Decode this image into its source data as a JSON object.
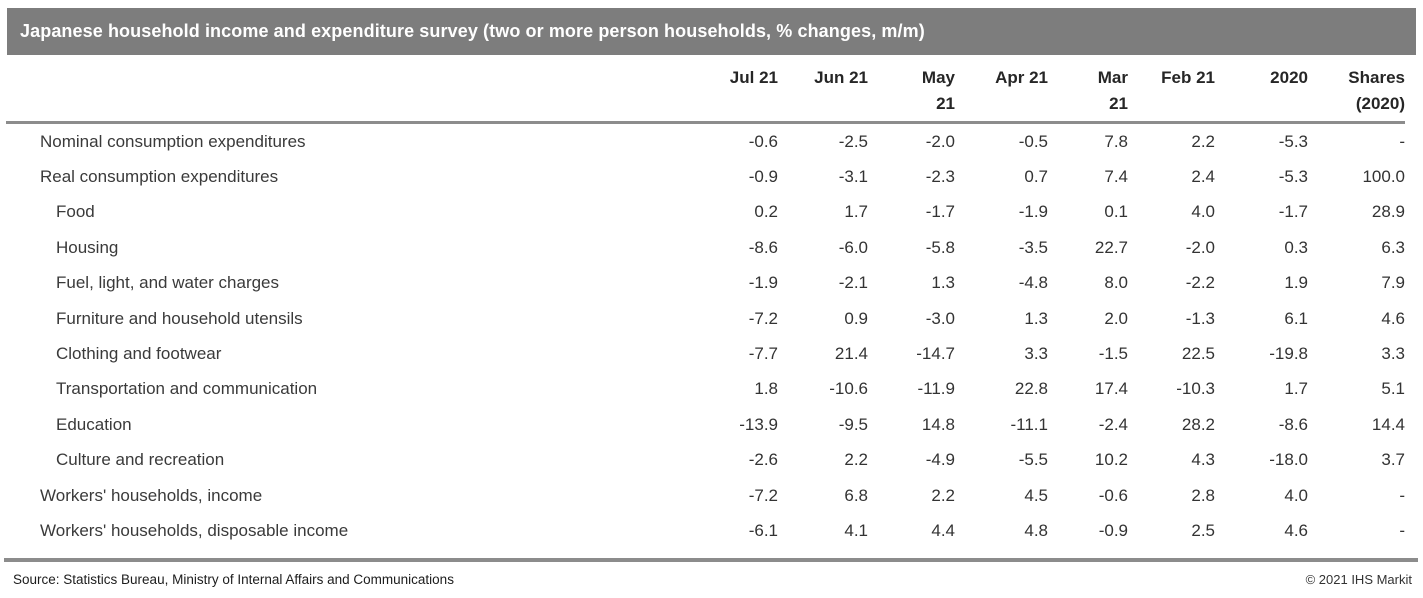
{
  "chart_data": {
    "type": "table",
    "title": "Japanese household income and expenditure survey (two or more person households, % changes, m/m)",
    "columns": [
      "Jul 21",
      "Jun 21",
      "May\n21",
      "Apr 21",
      "Mar\n21",
      "Feb 21",
      "2020",
      "Shares\n(2020)"
    ],
    "rows": [
      {
        "label": "Nominal consumption expenditures",
        "indent": 0,
        "values": [
          "-0.6",
          "-2.5",
          "-2.0",
          "-0.5",
          "7.8",
          "2.2",
          "-5.3",
          "-"
        ]
      },
      {
        "label": "Real consumption expenditures",
        "indent": 0,
        "values": [
          "-0.9",
          "-3.1",
          "-2.3",
          "0.7",
          "7.4",
          "2.4",
          "-5.3",
          "100.0"
        ]
      },
      {
        "label": "Food",
        "indent": 1,
        "values": [
          "0.2",
          "1.7",
          "-1.7",
          "-1.9",
          "0.1",
          "4.0",
          "-1.7",
          "28.9"
        ]
      },
      {
        "label": "Housing",
        "indent": 1,
        "values": [
          "-8.6",
          "-6.0",
          "-5.8",
          "-3.5",
          "22.7",
          "-2.0",
          "0.3",
          "6.3"
        ]
      },
      {
        "label": "Fuel, light, and water charges",
        "indent": 1,
        "values": [
          "-1.9",
          "-2.1",
          "1.3",
          "-4.8",
          "8.0",
          "-2.2",
          "1.9",
          "7.9"
        ]
      },
      {
        "label": "Furniture and household utensils",
        "indent": 1,
        "values": [
          "-7.2",
          "0.9",
          "-3.0",
          "1.3",
          "2.0",
          "-1.3",
          "6.1",
          "4.6"
        ]
      },
      {
        "label": "Clothing and footwear",
        "indent": 1,
        "values": [
          "-7.7",
          "21.4",
          "-14.7",
          "3.3",
          "-1.5",
          "22.5",
          "-19.8",
          "3.3"
        ]
      },
      {
        "label": "Transportation and communication",
        "indent": 1,
        "values": [
          "1.8",
          "-10.6",
          "-11.9",
          "22.8",
          "17.4",
          "-10.3",
          "1.7",
          "5.1"
        ]
      },
      {
        "label": "Education",
        "indent": 1,
        "values": [
          "-13.9",
          "-9.5",
          "14.8",
          "-11.1",
          "-2.4",
          "28.2",
          "-8.6",
          "14.4"
        ]
      },
      {
        "label": "Culture and recreation",
        "indent": 1,
        "values": [
          "-2.6",
          "2.2",
          "-4.9",
          "-5.5",
          "10.2",
          "4.3",
          "-18.0",
          "3.7"
        ]
      },
      {
        "label": "Workers' households, income",
        "indent": 0,
        "values": [
          "-7.2",
          "6.8",
          "2.2",
          "4.5",
          "-0.6",
          "2.8",
          "4.0",
          "-"
        ]
      },
      {
        "label": "Workers' households, disposable income",
        "indent": 0,
        "values": [
          "-6.1",
          "4.1",
          "4.4",
          "4.8",
          "-0.9",
          "2.5",
          "4.6",
          "-"
        ]
      }
    ]
  },
  "footer": {
    "source": "Source: Statistics Bureau, Ministry of Internal Affairs and Communications",
    "copyright": "© 2021 IHS Markit"
  },
  "colors": {
    "title_bar_bg": "#7d7d7d",
    "title_text": "#ffffff",
    "rule": "#8c8c8c",
    "header_text": "#262626",
    "body_text": "#333333"
  }
}
